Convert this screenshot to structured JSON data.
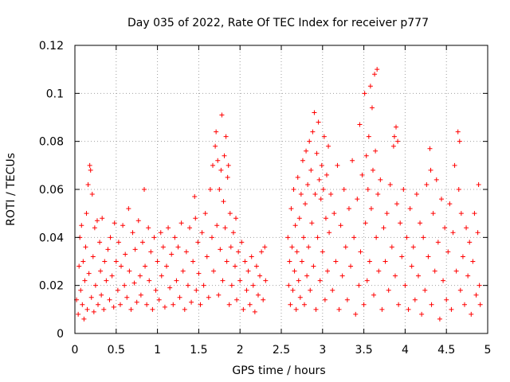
{
  "chart_data": {
    "type": "scatter",
    "title": "Day 035 of 2022, Rate Of TEC Index for receiver p777",
    "xlabel": "GPS time / hours",
    "ylabel": "ROTI / TECUs",
    "xlim": [
      0,
      5
    ],
    "ylim": [
      0,
      0.12
    ],
    "grid": true,
    "marker": "+",
    "color": "#ff0000",
    "x_ticks": [
      "0",
      "0.5",
      "1",
      "1.5",
      "2",
      "2.5",
      "3",
      "3.5",
      "4",
      "4.5",
      "5"
    ],
    "y_ticks": [
      "0",
      "0.02",
      "0.04",
      "0.06",
      "0.08",
      "0.1",
      "0.12"
    ],
    "series": [
      {
        "name": "ROTI",
        "points": [
          [
            0.02,
            0.014
          ],
          [
            0.04,
            0.008
          ],
          [
            0.05,
            0.028
          ],
          [
            0.06,
            0.04
          ],
          [
            0.07,
            0.018
          ],
          [
            0.08,
            0.045
          ],
          [
            0.09,
            0.012
          ],
          [
            0.1,
            0.03
          ],
          [
            0.11,
            0.006
          ],
          [
            0.12,
            0.022
          ],
          [
            0.13,
            0.036
          ],
          [
            0.14,
            0.05
          ],
          [
            0.15,
            0.01
          ],
          [
            0.16,
            0.062
          ],
          [
            0.17,
            0.025
          ],
          [
            0.18,
            0.07
          ],
          [
            0.19,
            0.068
          ],
          [
            0.2,
            0.015
          ],
          [
            0.21,
            0.058
          ],
          [
            0.22,
            0.032
          ],
          [
            0.23,
            0.009
          ],
          [
            0.24,
            0.044
          ],
          [
            0.25,
            0.02
          ],
          [
            0.27,
            0.047
          ],
          [
            0.28,
            0.012
          ],
          [
            0.3,
            0.038
          ],
          [
            0.31,
            0.026
          ],
          [
            0.32,
            0.016
          ],
          [
            0.33,
            0.048
          ],
          [
            0.35,
            0.01
          ],
          [
            0.36,
            0.03
          ],
          [
            0.38,
            0.022
          ],
          [
            0.4,
            0.035
          ],
          [
            0.42,
            0.014
          ],
          [
            0.43,
            0.04
          ],
          [
            0.45,
            0.024
          ],
          [
            0.47,
            0.011
          ],
          [
            0.48,
            0.046
          ],
          [
            0.5,
            0.03
          ],
          [
            0.52,
            0.018
          ],
          [
            0.53,
            0.038
          ],
          [
            0.55,
            0.012
          ],
          [
            0.56,
            0.028
          ],
          [
            0.58,
            0.045
          ],
          [
            0.6,
            0.02
          ],
          [
            0.61,
            0.033
          ],
          [
            0.63,
            0.015
          ],
          [
            0.65,
            0.052
          ],
          [
            0.66,
            0.026
          ],
          [
            0.68,
            0.01
          ],
          [
            0.7,
            0.042
          ],
          [
            0.72,
            0.021
          ],
          [
            0.73,
            0.035
          ],
          [
            0.75,
            0.013
          ],
          [
            0.77,
            0.047
          ],
          [
            0.79,
            0.024
          ],
          [
            0.8,
            0.016
          ],
          [
            0.82,
            0.038
          ],
          [
            0.84,
            0.06
          ],
          [
            0.85,
            0.028
          ],
          [
            0.87,
            0.012
          ],
          [
            0.89,
            0.044
          ],
          [
            0.9,
            0.022
          ],
          [
            0.92,
            0.034
          ],
          [
            0.94,
            0.01
          ],
          [
            0.96,
            0.04
          ],
          [
            0.98,
            0.018
          ],
          [
            1.0,
            0.03
          ],
          [
            1.02,
            0.014
          ],
          [
            1.04,
            0.042
          ],
          [
            1.05,
            0.024
          ],
          [
            1.07,
            0.036
          ],
          [
            1.09,
            0.011
          ],
          [
            1.11,
            0.028
          ],
          [
            1.13,
            0.044
          ],
          [
            1.15,
            0.019
          ],
          [
            1.17,
            0.033
          ],
          [
            1.19,
            0.012
          ],
          [
            1.21,
            0.04
          ],
          [
            1.23,
            0.022
          ],
          [
            1.25,
            0.036
          ],
          [
            1.27,
            0.015
          ],
          [
            1.29,
            0.046
          ],
          [
            1.31,
            0.026
          ],
          [
            1.33,
            0.01
          ],
          [
            1.35,
            0.034
          ],
          [
            1.37,
            0.02
          ],
          [
            1.39,
            0.044
          ],
          [
            1.41,
            0.013
          ],
          [
            1.43,
            0.03
          ],
          [
            1.45,
            0.057
          ],
          [
            1.46,
            0.048
          ],
          [
            1.47,
            0.018
          ],
          [
            1.49,
            0.038
          ],
          [
            1.5,
            0.025
          ],
          [
            1.52,
            0.012
          ],
          [
            1.54,
            0.042
          ],
          [
            1.56,
            0.02
          ],
          [
            1.58,
            0.05
          ],
          [
            1.6,
            0.032
          ],
          [
            1.62,
            0.015
          ],
          [
            1.64,
            0.06
          ],
          [
            1.66,
            0.04
          ],
          [
            1.67,
            0.07
          ],
          [
            1.68,
            0.026
          ],
          [
            1.7,
            0.078
          ],
          [
            1.71,
            0.084
          ],
          [
            1.72,
            0.045
          ],
          [
            1.73,
            0.072
          ],
          [
            1.74,
            0.016
          ],
          [
            1.75,
            0.06
          ],
          [
            1.76,
            0.035
          ],
          [
            1.77,
            0.068
          ],
          [
            1.78,
            0.091
          ],
          [
            1.79,
            0.022
          ],
          [
            1.8,
            0.055
          ],
          [
            1.81,
            0.074
          ],
          [
            1.82,
            0.044
          ],
          [
            1.83,
            0.082
          ],
          [
            1.84,
            0.03
          ],
          [
            1.85,
            0.065
          ],
          [
            1.86,
            0.07
          ],
          [
            1.87,
            0.012
          ],
          [
            1.88,
            0.05
          ],
          [
            1.89,
            0.036
          ],
          [
            1.9,
            0.02
          ],
          [
            1.92,
            0.042
          ],
          [
            1.94,
            0.028
          ],
          [
            1.95,
            0.048
          ],
          [
            1.96,
            0.014
          ],
          [
            1.98,
            0.034
          ],
          [
            2.0,
            0.022
          ],
          [
            2.02,
            0.038
          ],
          [
            2.04,
            0.01
          ],
          [
            2.06,
            0.03
          ],
          [
            2.08,
            0.018
          ],
          [
            2.1,
            0.026
          ],
          [
            2.12,
            0.012
          ],
          [
            2.14,
            0.032
          ],
          [
            2.16,
            0.02
          ],
          [
            2.18,
            0.009
          ],
          [
            2.2,
            0.028
          ],
          [
            2.22,
            0.016
          ],
          [
            2.24,
            0.024
          ],
          [
            2.26,
            0.034
          ],
          [
            2.28,
            0.014
          ],
          [
            2.3,
            0.036
          ],
          [
            2.31,
            0.022
          ],
          [
            2.58,
            0.04
          ],
          [
            2.59,
            0.02
          ],
          [
            2.6,
            0.03
          ],
          [
            2.61,
            0.012
          ],
          [
            2.62,
            0.052
          ],
          [
            2.63,
            0.036
          ],
          [
            2.64,
            0.018
          ],
          [
            2.65,
            0.06
          ],
          [
            2.66,
            0.026
          ],
          [
            2.67,
            0.045
          ],
          [
            2.68,
            0.01
          ],
          [
            2.69,
            0.034
          ],
          [
            2.7,
            0.065
          ],
          [
            2.71,
            0.022
          ],
          [
            2.72,
            0.048
          ],
          [
            2.73,
            0.015
          ],
          [
            2.74,
            0.058
          ],
          [
            2.75,
            0.03
          ],
          [
            2.76,
            0.072
          ],
          [
            2.77,
            0.04
          ],
          [
            2.78,
            0.012
          ],
          [
            2.79,
            0.054
          ],
          [
            2.8,
            0.076
          ],
          [
            2.81,
            0.024
          ],
          [
            2.82,
            0.062
          ],
          [
            2.83,
            0.036
          ],
          [
            2.84,
            0.08
          ],
          [
            2.85,
            0.018
          ],
          [
            2.86,
            0.068
          ],
          [
            2.87,
            0.046
          ],
          [
            2.88,
            0.084
          ],
          [
            2.89,
            0.028
          ],
          [
            2.9,
            0.092
          ],
          [
            2.91,
            0.058
          ],
          [
            2.92,
            0.01
          ],
          [
            2.93,
            0.075
          ],
          [
            2.94,
            0.04
          ],
          [
            2.95,
            0.088
          ],
          [
            2.96,
            0.064
          ],
          [
            2.97,
            0.022
          ],
          [
            2.98,
            0.056
          ],
          [
            2.99,
            0.07
          ],
          [
            3.0,
            0.034
          ],
          [
            3.01,
            0.06
          ],
          [
            3.02,
            0.082
          ],
          [
            3.03,
            0.014
          ],
          [
            3.04,
            0.048
          ],
          [
            3.05,
            0.066
          ],
          [
            3.06,
            0.026
          ],
          [
            3.07,
            0.078
          ],
          [
            3.08,
            0.042
          ],
          [
            3.1,
            0.058
          ],
          [
            3.12,
            0.018
          ],
          [
            3.14,
            0.05
          ],
          [
            3.16,
            0.03
          ],
          [
            3.18,
            0.07
          ],
          [
            3.2,
            0.01
          ],
          [
            3.22,
            0.045
          ],
          [
            3.24,
            0.024
          ],
          [
            3.26,
            0.06
          ],
          [
            3.28,
            0.036
          ],
          [
            3.3,
            0.014
          ],
          [
            3.32,
            0.052
          ],
          [
            3.34,
            0.028
          ],
          [
            3.36,
            0.072
          ],
          [
            3.38,
            0.04
          ],
          [
            3.4,
            0.008
          ],
          [
            3.42,
            0.056
          ],
          [
            3.44,
            0.02
          ],
          [
            3.45,
            0.087
          ],
          [
            3.46,
            0.034
          ],
          [
            3.48,
            0.066
          ],
          [
            3.5,
            0.012
          ],
          [
            3.51,
            0.1
          ],
          [
            3.52,
            0.046
          ],
          [
            3.53,
            0.074
          ],
          [
            3.54,
            0.022
          ],
          [
            3.55,
            0.06
          ],
          [
            3.56,
            0.082
          ],
          [
            3.57,
            0.03
          ],
          [
            3.58,
            0.103
          ],
          [
            3.59,
            0.052
          ],
          [
            3.6,
            0.094
          ],
          [
            3.61,
            0.068
          ],
          [
            3.62,
            0.016
          ],
          [
            3.63,
            0.108
          ],
          [
            3.64,
            0.076
          ],
          [
            3.65,
            0.04
          ],
          [
            3.66,
            0.11
          ],
          [
            3.67,
            0.058
          ],
          [
            3.68,
            0.026
          ],
          [
            3.7,
            0.064
          ],
          [
            3.72,
            0.01
          ],
          [
            3.74,
            0.044
          ],
          [
            3.76,
            0.03
          ],
          [
            3.78,
            0.05
          ],
          [
            3.8,
            0.018
          ],
          [
            3.82,
            0.062
          ],
          [
            3.84,
            0.036
          ],
          [
            3.86,
            0.078
          ],
          [
            3.87,
            0.082
          ],
          [
            3.88,
            0.024
          ],
          [
            3.89,
            0.086
          ],
          [
            3.9,
            0.054
          ],
          [
            3.91,
            0.08
          ],
          [
            3.92,
            0.012
          ],
          [
            3.94,
            0.046
          ],
          [
            3.96,
            0.032
          ],
          [
            3.98,
            0.06
          ],
          [
            4.0,
            0.02
          ],
          [
            4.02,
            0.04
          ],
          [
            4.04,
            0.01
          ],
          [
            4.06,
            0.052
          ],
          [
            4.08,
            0.028
          ],
          [
            4.1,
            0.036
          ],
          [
            4.12,
            0.014
          ],
          [
            4.14,
            0.058
          ],
          [
            4.16,
            0.024
          ],
          [
            4.18,
            0.046
          ],
          [
            4.2,
            0.008
          ],
          [
            4.22,
            0.04
          ],
          [
            4.24,
            0.018
          ],
          [
            4.26,
            0.062
          ],
          [
            4.28,
            0.032
          ],
          [
            4.3,
            0.077
          ],
          [
            4.31,
            0.068
          ],
          [
            4.32,
            0.012
          ],
          [
            4.34,
            0.05
          ],
          [
            4.36,
            0.026
          ],
          [
            4.38,
            0.064
          ],
          [
            4.4,
            0.038
          ],
          [
            4.42,
            0.006
          ],
          [
            4.44,
            0.056
          ],
          [
            4.46,
            0.022
          ],
          [
            4.48,
            0.044
          ],
          [
            4.5,
            0.014
          ],
          [
            4.52,
            0.034
          ],
          [
            4.54,
            0.054
          ],
          [
            4.56,
            0.01
          ],
          [
            4.58,
            0.042
          ],
          [
            4.6,
            0.07
          ],
          [
            4.62,
            0.026
          ],
          [
            4.64,
            0.084
          ],
          [
            4.65,
            0.06
          ],
          [
            4.66,
            0.08
          ],
          [
            4.67,
            0.018
          ],
          [
            4.68,
            0.05
          ],
          [
            4.7,
            0.032
          ],
          [
            4.72,
            0.012
          ],
          [
            4.74,
            0.044
          ],
          [
            4.76,
            0.024
          ],
          [
            4.78,
            0.038
          ],
          [
            4.8,
            0.008
          ],
          [
            4.82,
            0.03
          ],
          [
            4.84,
            0.05
          ],
          [
            4.86,
            0.016
          ],
          [
            4.88,
            0.042
          ],
          [
            4.89,
            0.062
          ],
          [
            4.9,
            0.02
          ],
          [
            4.91,
            0.012
          ]
        ]
      }
    ]
  }
}
